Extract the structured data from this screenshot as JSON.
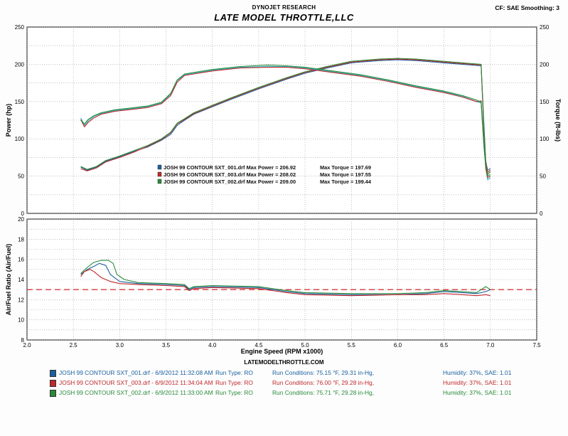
{
  "header": {
    "company": "DYNOJET RESEARCH",
    "title": "LATE MODEL THROTTLE,LLC",
    "settings": "CF: SAE  Smoothing: 3",
    "website": "LATEMODELTHROTTLE.COM"
  },
  "colors": {
    "run1": "#1a5f9e",
    "run2": "#c0282a",
    "run3": "#2a8a3a",
    "hp_alt": "#29b7c4",
    "afr_ref": "#d23a3a",
    "grid": "#9a9a9a"
  },
  "chart_data": [
    {
      "type": "line",
      "title": "",
      "xlabel": "",
      "ylabel": "Power (hp)",
      "y2label": "Torque (ft-lbs)",
      "xlim": [
        2.0,
        7.5
      ],
      "ylim": [
        0,
        250
      ],
      "y2lim": [
        0,
        250
      ],
      "yticks": [
        "0",
        "50",
        "100",
        "150",
        "200",
        "250"
      ],
      "grid": true,
      "legend": [
        {
          "color": "run1",
          "label": "JOSH 99 CONTOUR SXT_001.drf Max Power = 206.92",
          "torque": "Max Torque = 197.69"
        },
        {
          "color": "run2",
          "label": "JOSH 99 CONTOUR SXT_003.drf Max Power = 208.02",
          "torque": "Max Torque = 197.55"
        },
        {
          "color": "run3",
          "label": "JOSH 99 CONTOUR SXT_002.drf Max Power = 209.00",
          "torque": "Max Torque = 199.44"
        }
      ],
      "series": [
        {
          "kind": "power",
          "color": "run1",
          "x": [
            2.58,
            2.65,
            2.75,
            2.85,
            3.0,
            3.15,
            3.3,
            3.45,
            3.55,
            3.62,
            3.7,
            3.8,
            4.0,
            4.2,
            4.5,
            4.8,
            5.0,
            5.2,
            5.5,
            5.8,
            6.0,
            6.2,
            6.4,
            6.6,
            6.8,
            6.9,
            6.93,
            6.95,
            6.97,
            7.0
          ],
          "y": [
            62,
            58,
            62,
            70,
            76,
            83,
            89,
            98,
            106,
            118,
            125,
            133,
            143,
            153,
            167,
            180,
            188,
            194,
            202,
            205,
            206,
            205,
            203,
            201,
            199,
            198,
            120,
            70,
            58,
            60
          ]
        },
        {
          "kind": "power",
          "color": "run2",
          "x": [
            2.58,
            2.65,
            2.75,
            2.85,
            3.0,
            3.15,
            3.3,
            3.45,
            3.55,
            3.62,
            3.7,
            3.8,
            4.0,
            4.2,
            4.5,
            4.8,
            5.0,
            5.2,
            5.5,
            5.8,
            6.0,
            6.2,
            6.4,
            6.6,
            6.8,
            6.9,
            6.93,
            6.95,
            6.97,
            7.0
          ],
          "y": [
            60,
            57,
            61,
            69,
            75,
            82,
            90,
            99,
            108,
            120,
            126,
            134,
            144,
            154,
            168,
            181,
            189,
            195,
            203,
            206,
            207,
            206,
            204,
            202,
            200,
            199,
            110,
            68,
            55,
            58
          ]
        },
        {
          "kind": "power",
          "color": "run3",
          "x": [
            2.58,
            2.65,
            2.75,
            2.85,
            3.0,
            3.15,
            3.3,
            3.45,
            3.55,
            3.62,
            3.7,
            3.8,
            4.0,
            4.2,
            4.5,
            4.8,
            5.0,
            5.2,
            5.5,
            5.8,
            6.0,
            6.2,
            6.4,
            6.6,
            6.8,
            6.9,
            6.93,
            6.95,
            6.97,
            7.0
          ],
          "y": [
            63,
            59,
            63,
            71,
            77,
            84,
            91,
            100,
            109,
            121,
            127,
            135,
            145,
            155,
            169,
            182,
            190,
            196,
            204,
            207,
            208,
            207,
            205,
            203,
            201,
            200,
            115,
            66,
            52,
            56
          ]
        },
        {
          "kind": "torque",
          "color": "hp_alt",
          "x": [
            2.58,
            2.62,
            2.66,
            2.72,
            2.8,
            2.95,
            3.1,
            3.3,
            3.45,
            3.55,
            3.62,
            3.7,
            3.8,
            4.0,
            4.3,
            4.6,
            4.8,
            5.0,
            5.3,
            5.6,
            5.9,
            6.2,
            6.5,
            6.7,
            6.85,
            6.9,
            6.93,
            6.95,
            6.97,
            7.0
          ],
          "y": [
            128,
            118,
            124,
            130,
            134,
            138,
            140,
            143,
            148,
            160,
            178,
            186,
            188,
            192,
            196,
            197,
            197,
            195,
            190,
            185,
            178,
            170,
            163,
            157,
            150,
            148,
            90,
            62,
            45,
            48
          ]
        },
        {
          "kind": "torque",
          "color": "run2",
          "x": [
            2.58,
            2.62,
            2.66,
            2.72,
            2.8,
            2.95,
            3.1,
            3.3,
            3.45,
            3.55,
            3.62,
            3.7,
            3.8,
            4.0,
            4.3,
            4.6,
            4.8,
            5.0,
            5.3,
            5.6,
            5.9,
            6.2,
            6.5,
            6.7,
            6.85,
            6.9,
            6.93,
            6.95,
            6.97,
            7.0
          ],
          "y": [
            126,
            116,
            122,
            128,
            133,
            137,
            139,
            142,
            147,
            158,
            176,
            185,
            187,
            191,
            195,
            196,
            196,
            194,
            189,
            184,
            177,
            169,
            162,
            156,
            150,
            151,
            95,
            60,
            48,
            50
          ]
        },
        {
          "kind": "torque",
          "color": "run3",
          "x": [
            2.58,
            2.62,
            2.66,
            2.72,
            2.8,
            2.95,
            3.1,
            3.3,
            3.45,
            3.55,
            3.62,
            3.7,
            3.8,
            4.0,
            4.3,
            4.6,
            4.8,
            5.0,
            5.3,
            5.6,
            5.9,
            6.2,
            6.5,
            6.7,
            6.85,
            6.9,
            6.93,
            6.95,
            6.97,
            7.0
          ],
          "y": [
            125,
            120,
            126,
            131,
            135,
            139,
            141,
            144,
            149,
            161,
            179,
            187,
            189,
            193,
            197,
            199,
            198,
            196,
            191,
            186,
            179,
            171,
            164,
            158,
            152,
            149,
            92,
            64,
            50,
            52
          ]
        }
      ]
    },
    {
      "type": "line",
      "title": "",
      "xlabel": "Engine Speed (RPM x1000)",
      "ylabel": "Air/Fuel Ratio (Air/Fuel)",
      "xlim": [
        2.0,
        7.5
      ],
      "ylim": [
        8,
        20
      ],
      "xticks": [
        "2.0",
        "2.5",
        "3.0",
        "3.5",
        "4.0",
        "4.5",
        "5.0",
        "5.5",
        "6.0",
        "6.5",
        "7.0",
        "7.5"
      ],
      "yticks": [
        "8",
        "10",
        "12",
        "14",
        "16",
        "18",
        "20"
      ],
      "grid": true,
      "reference_line": {
        "y": 13.0,
        "color": "afr_ref",
        "style": "dashed"
      },
      "series": [
        {
          "color": "run1",
          "x": [
            2.58,
            2.65,
            2.72,
            2.78,
            2.85,
            2.9,
            3.0,
            3.2,
            3.5,
            3.7,
            3.75,
            3.8,
            4.0,
            4.5,
            4.8,
            5.0,
            5.5,
            6.0,
            6.3,
            6.5,
            6.7,
            6.85,
            6.95,
            7.0
          ],
          "y": [
            14.5,
            15.0,
            15.3,
            15.6,
            15.4,
            14.5,
            13.8,
            13.6,
            13.5,
            13.4,
            13.0,
            13.2,
            13.3,
            13.2,
            12.8,
            12.6,
            12.5,
            12.5,
            12.6,
            12.8,
            12.7,
            12.6,
            12.8,
            13.0
          ]
        },
        {
          "color": "run2",
          "x": [
            2.58,
            2.62,
            2.68,
            2.72,
            2.8,
            2.9,
            3.0,
            3.2,
            3.5,
            3.7,
            3.75,
            3.8,
            4.0,
            4.5,
            4.8,
            5.0,
            5.5,
            6.0,
            6.3,
            6.5,
            6.7,
            6.85,
            6.95,
            7.0
          ],
          "y": [
            14.3,
            14.8,
            15.0,
            14.8,
            14.2,
            13.8,
            13.6,
            13.5,
            13.4,
            13.3,
            12.9,
            13.1,
            13.2,
            13.1,
            12.7,
            12.5,
            12.4,
            12.5,
            12.5,
            12.6,
            12.5,
            12.4,
            12.5,
            12.4
          ]
        },
        {
          "color": "run3",
          "x": [
            2.58,
            2.65,
            2.72,
            2.8,
            2.88,
            2.93,
            2.97,
            3.05,
            3.2,
            3.5,
            3.7,
            3.75,
            3.8,
            4.0,
            4.5,
            4.8,
            5.0,
            5.5,
            6.0,
            6.3,
            6.5,
            6.7,
            6.85,
            6.95,
            7.0
          ],
          "y": [
            14.6,
            15.2,
            15.7,
            15.9,
            15.9,
            15.6,
            14.5,
            14.0,
            13.7,
            13.6,
            13.5,
            13.1,
            13.3,
            13.4,
            13.3,
            12.9,
            12.7,
            12.6,
            12.6,
            12.7,
            12.9,
            12.8,
            12.7,
            13.3,
            13.0
          ]
        }
      ]
    }
  ],
  "runs": [
    {
      "color": "run1",
      "file": "JOSH 99 CONTOUR SXT_001.drf - 6/9/2012 11:32:08 AM",
      "type": "Run Type: RO",
      "conditions": "Run Conditions: 75.15 °F, 29.31 in-Hg,",
      "humidity": "Humidity:  37%, SAE: 1.01"
    },
    {
      "color": "run2",
      "file": "JOSH 99 CONTOUR SXT_003.drf - 6/9/2012 11:34:04 AM",
      "type": "Run Type: RO",
      "conditions": "Run Conditions: 76.00 °F, 29.28 in-Hg,",
      "humidity": "Humidity:  37%, SAE: 1.01"
    },
    {
      "color": "run3",
      "file": "JOSH 99 CONTOUR SXT_002.drf - 6/9/2012 11:33:00 AM",
      "type": "Run Type: RO",
      "conditions": "Run Conditions: 75.71 °F, 29.28 in-Hg,",
      "humidity": "Humidity:  37%, SAE: 1.01"
    }
  ]
}
